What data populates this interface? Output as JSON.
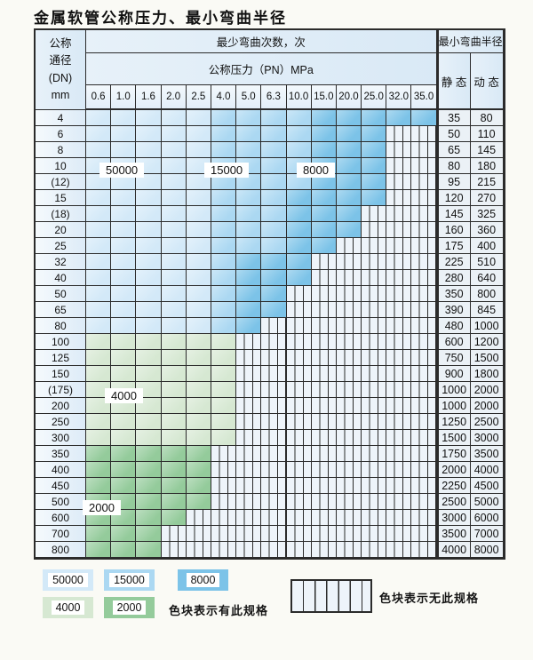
{
  "title": "金属软管公称压力、最小弯曲半径",
  "colors": {
    "page_bg": "#fafaf5",
    "header_bg": "#e7f1f9",
    "value_bg": "#ebf1f6",
    "blue_light": "#d3e9f8",
    "blue_mid": "#abd8f2",
    "blue_dark": "#7cc3e8",
    "green_light": "#d6e8d2",
    "green_dark": "#94cb9b",
    "hatch_bg": "#eef4fa"
  },
  "table": {
    "dn_header_lines": [
      "公称",
      "通径",
      "(DN)",
      "mm"
    ],
    "bend_cycles_header": "最少弯曲次数，次",
    "pressure_header": "公称压力（PN）MPa",
    "radius_header": "最小弯曲半径",
    "static_header": "静 态",
    "dynamic_header": "动 态",
    "pressure_columns": [
      "0.6",
      "1.0",
      "1.6",
      "2.0",
      "2.5",
      "4.0",
      "5.0",
      "6.3",
      "10.0",
      "15.0",
      "20.0",
      "25.0",
      "32.0",
      "35.0"
    ],
    "zone_codes": {
      "A": "50000",
      "B": "15000",
      "C": "8000",
      "D": "4000",
      "E": "2000",
      "X": "no-spec"
    },
    "rows": [
      {
        "dn": "4",
        "zones": "AAAAABBBBCCCCC",
        "static": "35",
        "dynamic": "80"
      },
      {
        "dn": "6",
        "zones": "AAAAABBBBCCCXX",
        "static": "50",
        "dynamic": "110"
      },
      {
        "dn": "8",
        "zones": "AAAAABBBBCCCXX",
        "static": "65",
        "dynamic": "145"
      },
      {
        "dn": "10",
        "zones": "AAAAABBBBCCCXX",
        "static": "80",
        "dynamic": "180"
      },
      {
        "dn": "(12)",
        "zones": "AAAAABBBBCCCXX",
        "static": "95",
        "dynamic": "215"
      },
      {
        "dn": "15",
        "zones": "AAAAABBBCCCCXX",
        "static": "120",
        "dynamic": "270"
      },
      {
        "dn": "(18)",
        "zones": "AAAAABBBCCCXXX",
        "static": "145",
        "dynamic": "325"
      },
      {
        "dn": "20",
        "zones": "AAAAABBBCCCXXX",
        "static": "160",
        "dynamic": "360"
      },
      {
        "dn": "25",
        "zones": "AAAAABBBCCXXXX",
        "static": "175",
        "dynamic": "400"
      },
      {
        "dn": "32",
        "zones": "AAAAABCCCXXXXX",
        "static": "225",
        "dynamic": "510"
      },
      {
        "dn": "40",
        "zones": "AAAAABCCCXXXXX",
        "static": "280",
        "dynamic": "640"
      },
      {
        "dn": "50",
        "zones": "AAAAABCCXXXXXX",
        "static": "350",
        "dynamic": "800"
      },
      {
        "dn": "65",
        "zones": "AAAAABCCXXXXXX",
        "static": "390",
        "dynamic": "845"
      },
      {
        "dn": "80",
        "zones": "AAAAABCXXXXXXX",
        "static": "480",
        "dynamic": "1000"
      },
      {
        "dn": "100",
        "zones": "DDDDDDXXXXXXXX",
        "static": "600",
        "dynamic": "1200"
      },
      {
        "dn": "125",
        "zones": "DDDDDDXXXXXXXX",
        "static": "750",
        "dynamic": "1500"
      },
      {
        "dn": "150",
        "zones": "DDDDDDXXXXXXXX",
        "static": "900",
        "dynamic": "1800"
      },
      {
        "dn": "(175)",
        "zones": "DDDDDDXXXXXXXX",
        "static": "1000",
        "dynamic": "2000"
      },
      {
        "dn": "200",
        "zones": "DDDDDDXXXXXXXX",
        "static": "1000",
        "dynamic": "2000"
      },
      {
        "dn": "250",
        "zones": "DDDDDDXXXXXXXX",
        "static": "1250",
        "dynamic": "2500"
      },
      {
        "dn": "300",
        "zones": "DDDDDDXXXXXXXX",
        "static": "1500",
        "dynamic": "3000"
      },
      {
        "dn": "350",
        "zones": "EEEEEXXXXXXXXX",
        "static": "1750",
        "dynamic": "3500"
      },
      {
        "dn": "400",
        "zones": "EEEEEXXXXXXXXX",
        "static": "2000",
        "dynamic": "4000"
      },
      {
        "dn": "450",
        "zones": "EEEEEXXXXXXXXX",
        "static": "2250",
        "dynamic": "4500"
      },
      {
        "dn": "500",
        "zones": "EEEEEXXXXXXXXX",
        "static": "2500",
        "dynamic": "5000"
      },
      {
        "dn": "600",
        "zones": "EEEEXXXXXXXXXX",
        "static": "3000",
        "dynamic": "6000"
      },
      {
        "dn": "700",
        "zones": "EEEXXXXXXXXXXX",
        "static": "3500",
        "dynamic": "7000"
      },
      {
        "dn": "800",
        "zones": "EEEXXXXXXXXXXX",
        "static": "4000",
        "dynamic": "8000"
      }
    ]
  },
  "overlay_labels": [
    {
      "text": "50000"
    },
    {
      "text": "15000"
    },
    {
      "text": "8000"
    },
    {
      "text": "4000"
    },
    {
      "text": "2000"
    }
  ],
  "legend": {
    "items": [
      {
        "label": "50000"
      },
      {
        "label": "15000"
      },
      {
        "label": "8000"
      },
      {
        "label": "4000"
      },
      {
        "label": "2000"
      }
    ],
    "has_spec_text": "色块表示有此规格",
    "no_spec_text": "色块表示无此规格"
  }
}
